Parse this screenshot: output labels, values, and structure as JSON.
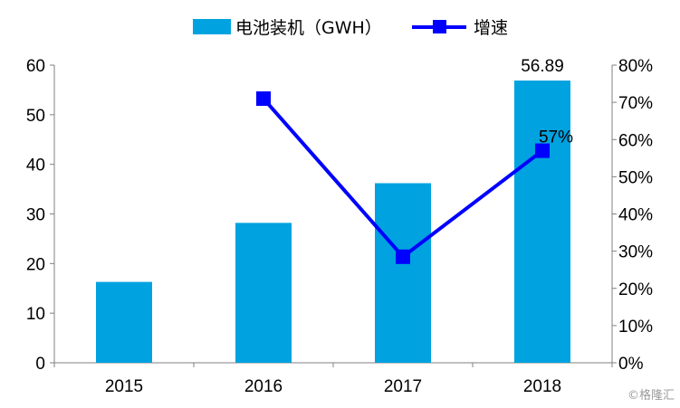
{
  "chart_data": {
    "type": "bar",
    "categories": [
      "2015",
      "2016",
      "2017",
      "2018"
    ],
    "series": [
      {
        "name": "电池装机（GWH）",
        "type": "bar",
        "axis": "left",
        "values": [
          16.3,
          28.2,
          36.2,
          56.89
        ],
        "color": "#00a2e0"
      },
      {
        "name": "增速",
        "type": "line",
        "axis": "right",
        "values": [
          null,
          71,
          28.5,
          57
        ],
        "color": "#0000ff"
      }
    ],
    "data_labels": {
      "bar_2018": "56.89",
      "line_2018": "57%"
    },
    "y_left": {
      "ylim": [
        0,
        60
      ],
      "ticks": [
        "0",
        "10",
        "20",
        "30",
        "40",
        "50",
        "60"
      ]
    },
    "y_right": {
      "ylim": [
        0,
        80
      ],
      "ticks": [
        "0%",
        "10%",
        "20%",
        "30%",
        "40%",
        "50%",
        "60%",
        "70%",
        "80%"
      ]
    },
    "legend": {
      "position": "top-center"
    },
    "grid": false
  },
  "watermark": "©格隆汇"
}
